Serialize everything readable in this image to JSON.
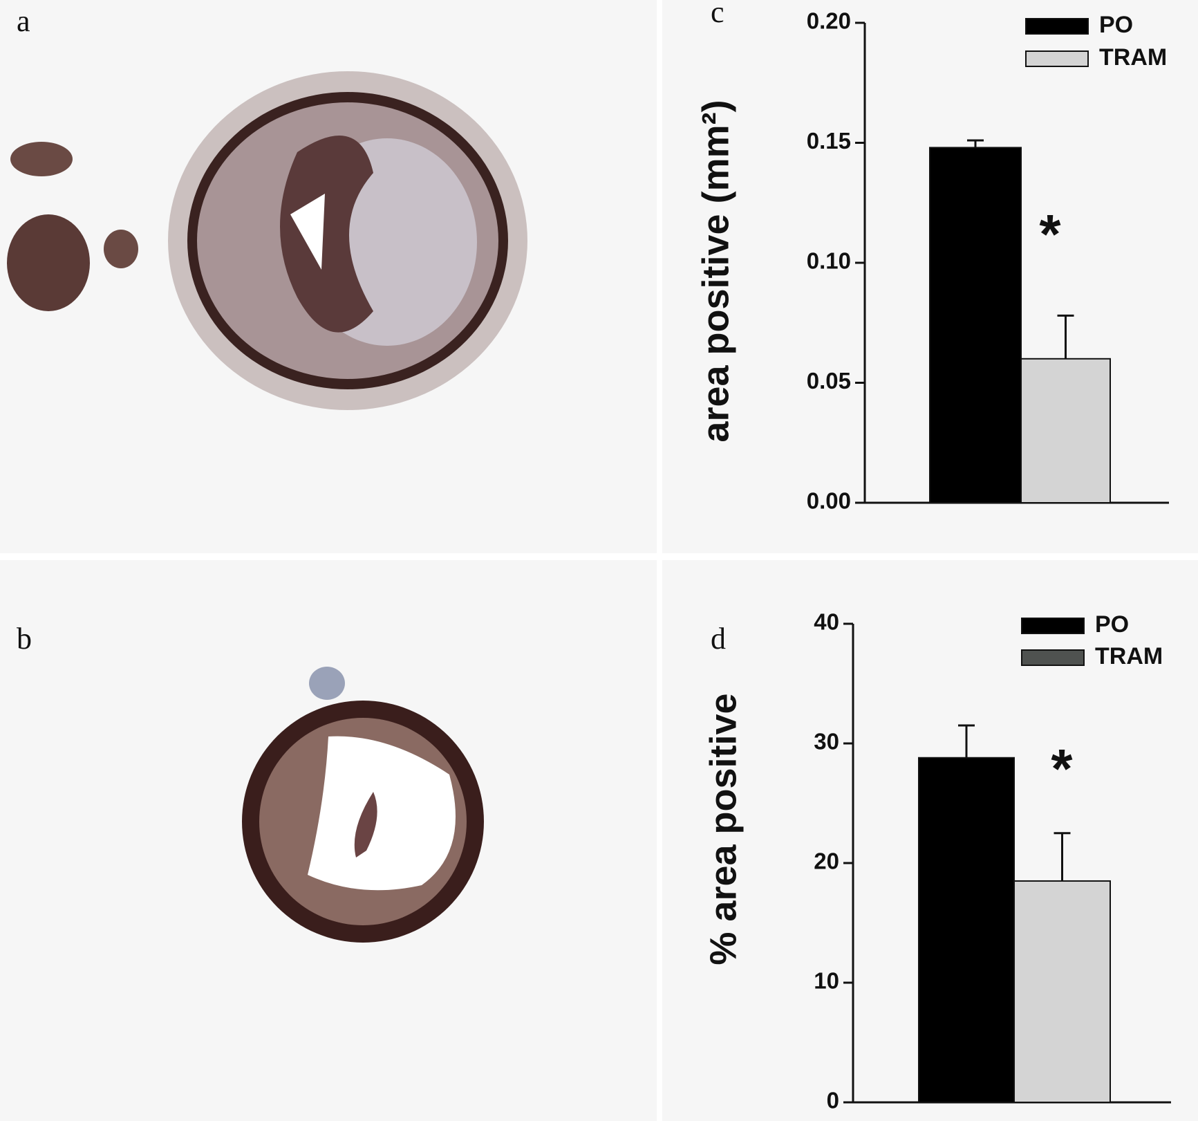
{
  "images": [
    {
      "label": "a"
    },
    {
      "label": "b"
    }
  ],
  "chart_data": [
    {
      "type": "bar",
      "label": "c",
      "ylabel": "area positive (mm²)",
      "ylim": [
        0,
        0.2
      ],
      "yticks": [
        {
          "value": 0,
          "label": "0.00"
        },
        0.05,
        {
          "value": 0.1,
          "label": "0.10"
        },
        0.15,
        {
          "value": 0.2,
          "label": "0.20"
        }
      ],
      "series": [
        {
          "name": "PO",
          "color": "#000000",
          "values": [
            0.148
          ],
          "errors": [
            0.003
          ]
        },
        {
          "name": "TRAM",
          "color": "#d4d4d4",
          "values": [
            0.06
          ],
          "errors": [
            0.018
          ]
        }
      ],
      "annotation": "*",
      "legend": "upper right"
    },
    {
      "type": "bar",
      "label": "d",
      "ylabel": "% area positive",
      "ylim": [
        0,
        40
      ],
      "yticks": [
        0,
        10,
        20,
        30,
        40
      ],
      "series": [
        {
          "name": "PO",
          "color": "#000000",
          "values": [
            28.8
          ],
          "errors": [
            2.7
          ]
        },
        {
          "name": "TRAM",
          "color": "#d4d4d4",
          "legend_color": "#4f5250",
          "values": [
            18.5
          ],
          "errors": [
            4
          ]
        }
      ],
      "annotation": "*",
      "legend": "upper right"
    }
  ]
}
